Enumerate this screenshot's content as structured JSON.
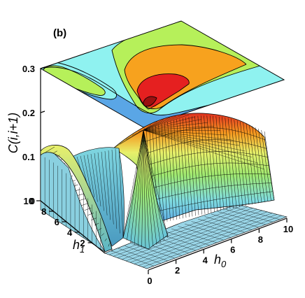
{
  "panel_label": "(b)",
  "colors": {
    "band_blue": "#5aa6e6",
    "band_cyan": "#8ff2f0",
    "band_green": "#b6f05a",
    "band_orange": "#f7a21e",
    "band_red": "#e52020",
    "band_darkred": "#9a1010",
    "mesh_cyan": "#7fd6e0",
    "mesh_yellow": "#e6f06a"
  },
  "chart_data": {
    "type": "surface",
    "title": "",
    "zlabel": "C(i,i+1)",
    "xlabel": "h0",
    "xlabel_base": "h",
    "xlabel_sub": "0",
    "ylabel": "h1",
    "ylabel_base": "h",
    "ylabel_sub": "1",
    "xlim": [
      0,
      10
    ],
    "ylim": [
      0,
      10
    ],
    "zlim": [
      0,
      0.3
    ],
    "z_ticks": [
      "0",
      "0.1",
      "0.2",
      "0.3"
    ],
    "x_ticks": [
      "0",
      "2",
      "4",
      "6",
      "8",
      "10"
    ],
    "y_ticks": [
      "2",
      "4",
      "6",
      "8",
      "10"
    ],
    "contour_projection": "top",
    "peak": {
      "h0": 1.5,
      "h1": 0.2,
      "C": 0.19
    },
    "ridge_max": 0.115
  }
}
